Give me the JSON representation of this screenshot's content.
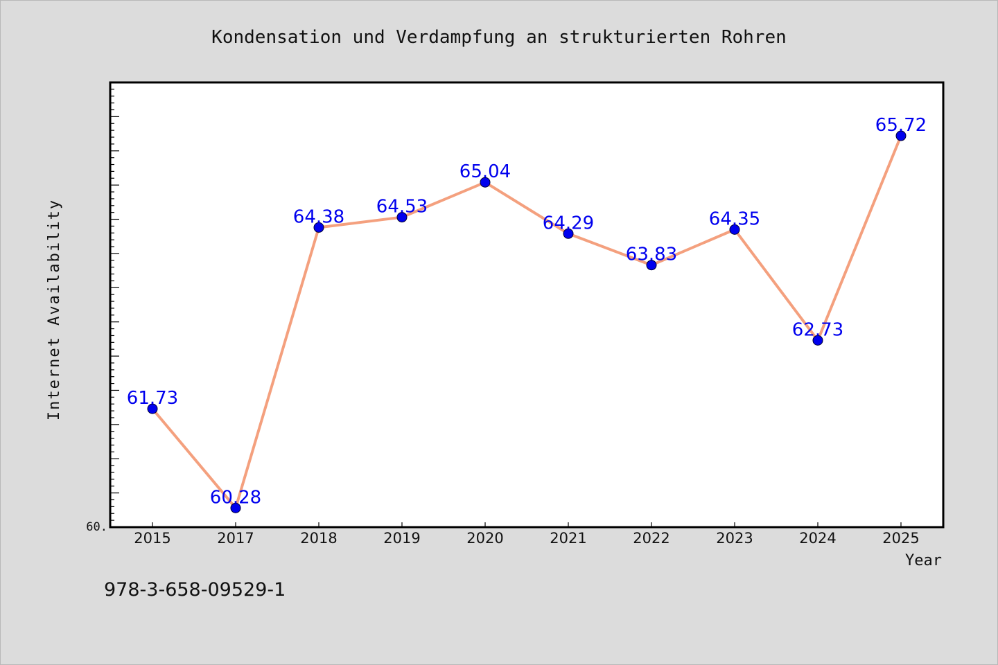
{
  "chart_data": {
    "type": "line",
    "title": "Kondensation und Verdampfung an strukturierten Rohren",
    "xlabel": "Year",
    "ylabel": "Internet Availability",
    "categories": [
      "2015",
      "2017",
      "2018",
      "2019",
      "2020",
      "2021",
      "2022",
      "2023",
      "2024",
      "2025"
    ],
    "series": [
      {
        "values": [
          61.73,
          60.28,
          64.38,
          64.53,
          65.04,
          64.29,
          63.83,
          64.35,
          62.73,
          65.72
        ],
        "data_labels": [
          "61.73",
          "60.28",
          "64.38",
          "64.53",
          "65.04",
          "64.29",
          "63.83",
          "64.35",
          "62.73",
          "65.72"
        ],
        "line_color": "#f4a07e",
        "marker_color": "#0000ee",
        "label_color": "#0000ee"
      }
    ],
    "ylim": [
      60.0,
      66.5
    ],
    "y_tick_label": "60.",
    "grid": false,
    "legend": "none"
  },
  "footer": {
    "isbn": "978-3-658-09529-1"
  }
}
